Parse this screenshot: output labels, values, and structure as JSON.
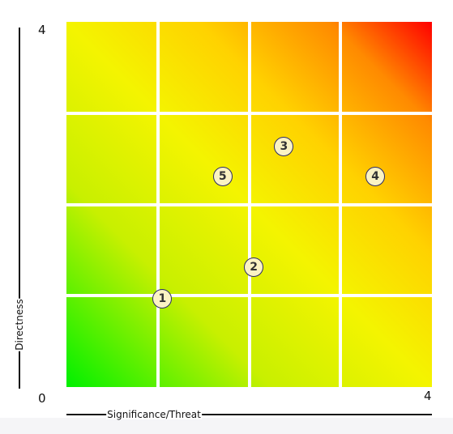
{
  "chart_data": {
    "type": "scatter",
    "title": "",
    "xlabel": "Significance/Threat",
    "ylabel": "Directness",
    "xlim": [
      0,
      4
    ],
    "ylim": [
      0,
      4
    ],
    "x_tick_labels": {
      "min": "0",
      "max": "4"
    },
    "y_tick_labels": {
      "max": "4"
    },
    "grid_divisions": 4,
    "grid": true,
    "background": "risk-gradient green (bottom-left) to red (top-right)",
    "colors": {
      "low": "#00f000",
      "mid": "#f4f400",
      "high": "#ff0000",
      "marker_fill": "#fbf3c3",
      "marker_border": "#2a2a6a"
    },
    "points": [
      {
        "label": "1",
        "x": 1.05,
        "y": 0.97
      },
      {
        "label": "2",
        "x": 2.05,
        "y": 1.31
      },
      {
        "label": "3",
        "x": 2.38,
        "y": 2.63
      },
      {
        "label": "4",
        "x": 3.38,
        "y": 2.31
      },
      {
        "label": "5",
        "x": 1.71,
        "y": 2.31
      }
    ]
  }
}
